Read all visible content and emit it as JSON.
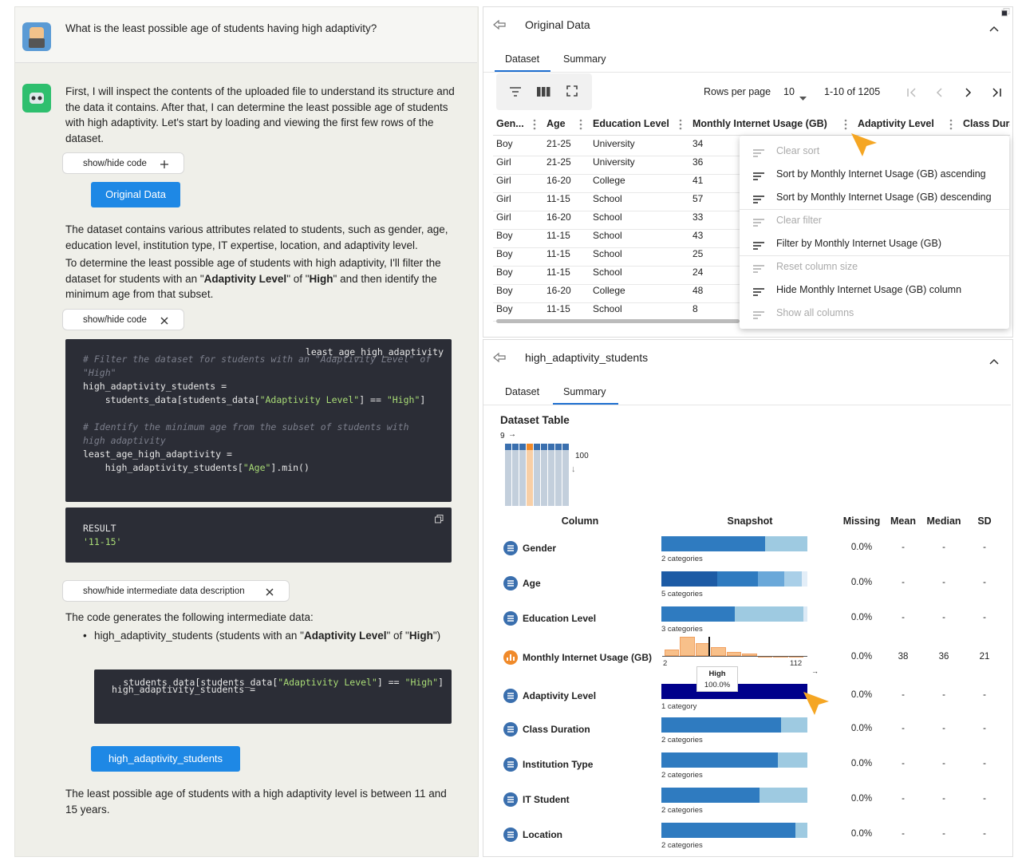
{
  "chat": {
    "question": "What is the least possible age of students having high adaptivity?",
    "intro": "First, I will inspect the contents of the uploaded file to understand its structure and the data it contains. After that, I can determine the least possible age of students with high adaptivity. Let's start by loading and viewing the first few rows of the dataset.",
    "toggle_1": "show/hide code",
    "data_button_1": "Original Data",
    "paragraph_1": "The dataset contains various attributes related to students, such as gender, age, education level, institution type, IT expertise, location, and adaptivity level.",
    "paragraph_2": [
      "To determine the least possible age of students with high adaptivity, I'll filter the dataset for students with an \"",
      "Adaptivity Level",
      "\" of \"",
      "High",
      "\" and then identify the minimum age from that subset."
    ],
    "toggle_2": "show/hide code",
    "code": [
      [
        "# Filter the dataset for students with an \"Adaptivity Level\" of \"High\""
      ],
      [
        "high_adaptivity_students ="
      ],
      [
        "    students_data[students_data[",
        "\"Adaptivity Level\"",
        "] == ",
        "\"High\"",
        "]"
      ],
      [
        ""
      ],
      [
        "# Identify the minimum age from the subset of students with high adaptivity"
      ],
      [
        "least_age_high_adaptivity ="
      ],
      [
        "    high_adaptivity_students[",
        "\"Age\"",
        "].min()"
      ],
      [
        "least_age_high_adaptivity"
      ]
    ],
    "result_label": "RESULT",
    "result_value": "'11-15'",
    "toggle_3": "show/hide intermediate data description",
    "paragraph_3": "The code generates the following intermediate data:",
    "bullet": [
      "high_adaptivity_students (students with an \"",
      "Adaptivity Level",
      "\" of \"",
      "High",
      "\")"
    ],
    "code_2": [
      [
        "high_adaptivity_students ="
      ],
      [
        "  students_data[students_data[",
        "\"Adaptivity Level\"",
        "] == ",
        "\"High\"",
        "]"
      ]
    ],
    "data_button_2": "high_adaptivity_students",
    "conclusion": "The least possible age of students with a high adaptivity level is between 11 and 15 years."
  },
  "original_panel": {
    "title": "Original Data",
    "tabs": [
      "Dataset",
      "Summary"
    ],
    "rows_per_page_label": "Rows per page",
    "rows_per_page": 10,
    "range": "1-10 of 1205",
    "columns": [
      "Gen...",
      "Age",
      "Education Level",
      "Monthly Internet Usage (GB)",
      "Adaptivity Level",
      "Class Dura"
    ],
    "rows": [
      [
        "Boy",
        "21-25",
        "University",
        34
      ],
      [
        "Girl",
        "21-25",
        "University",
        36
      ],
      [
        "Girl",
        "16-20",
        "College",
        41
      ],
      [
        "Girl",
        "11-15",
        "School",
        57
      ],
      [
        "Girl",
        "16-20",
        "School",
        33
      ],
      [
        "Boy",
        "11-15",
        "School",
        43
      ],
      [
        "Boy",
        "11-15",
        "School",
        25
      ],
      [
        "Boy",
        "11-15",
        "School",
        24
      ],
      [
        "Boy",
        "16-20",
        "College",
        48
      ],
      [
        "Boy",
        "11-15",
        "School",
        8
      ]
    ],
    "menu": [
      {
        "label": "Clear sort",
        "enabled": false
      },
      {
        "label": "Sort by Monthly Internet Usage (GB) ascending",
        "enabled": true
      },
      {
        "label": "Sort by Monthly Internet Usage (GB) descending",
        "enabled": true
      },
      {
        "label": "Clear filter",
        "enabled": false
      },
      {
        "label": "Filter by Monthly Internet Usage (GB)",
        "enabled": true
      },
      {
        "label": "Reset column size",
        "enabled": false
      },
      {
        "label": "Hide Monthly Internet Usage (GB) column",
        "enabled": true
      },
      {
        "label": "Show all columns",
        "enabled": false
      }
    ]
  },
  "summary_panel": {
    "title": "high_adaptivity_students",
    "tabs": [
      "Dataset",
      "Summary"
    ],
    "heading": "Dataset Table",
    "shape_columns": 9,
    "shape_rows": 100,
    "headers": [
      "Column",
      "Snapshot",
      "Missing",
      "Mean",
      "Median",
      "SD"
    ],
    "segment_colors": [
      "#2f7bc0",
      "#9ecae1"
    ],
    "rows": [
      {
        "name": "Gender",
        "snapshot": "2 categories",
        "segments": [
          71,
          29
        ],
        "missing": "0.0%",
        "mean": "-",
        "median": "-",
        "sd": "-"
      },
      {
        "name": "Age",
        "snapshot": "5 categories",
        "segments": [
          38,
          28,
          18,
          12,
          4
        ],
        "colors": [
          "#1d5ba5",
          "#2f7bc0",
          "#6aa8d9",
          "#a9cfe8",
          "#e3eef8"
        ],
        "missing": "0.0%",
        "mean": "-",
        "median": "-",
        "sd": "-"
      },
      {
        "name": "Education Level",
        "snapshot": "3 categories",
        "segments": [
          50,
          47,
          3
        ],
        "colors": [
          "#2f7bc0",
          "#9ecae1",
          "#dceaf6"
        ],
        "missing": "0.0%",
        "mean": "-",
        "median": "-",
        "sd": "-"
      },
      {
        "name": "Monthly Internet Usage (GB)",
        "histogram": [
          3,
          9,
          6,
          4,
          2,
          1,
          0,
          0,
          0
        ],
        "bin_min": "2",
        "bin_max": "112",
        "missing": "0.0%",
        "mean": "38",
        "median": "36",
        "sd": "21"
      },
      {
        "name": "Adaptivity Level",
        "snapshot": "1 category",
        "segments": [
          100
        ],
        "colors": [
          "#00008b"
        ],
        "tooltip": [
          "High",
          "100.0%"
        ],
        "missing": "0.0%",
        "mean": "-",
        "median": "-",
        "sd": "-"
      },
      {
        "name": "Class Duration",
        "snapshot": "2 categories",
        "segments": [
          82,
          18
        ],
        "missing": "0.0%",
        "mean": "-",
        "median": "-",
        "sd": "-"
      },
      {
        "name": "Institution Type",
        "snapshot": "2 categories",
        "segments": [
          80,
          20
        ],
        "missing": "0.0%",
        "mean": "-",
        "median": "-",
        "sd": "-"
      },
      {
        "name": "IT Student",
        "snapshot": "2 categories",
        "segments": [
          67,
          33
        ],
        "missing": "0.0%",
        "mean": "-",
        "median": "-",
        "sd": "-"
      },
      {
        "name": "Location",
        "snapshot": "2 categories",
        "segments": [
          92,
          8
        ],
        "missing": "0.0%",
        "mean": "-",
        "median": "-",
        "sd": "-"
      }
    ]
  }
}
